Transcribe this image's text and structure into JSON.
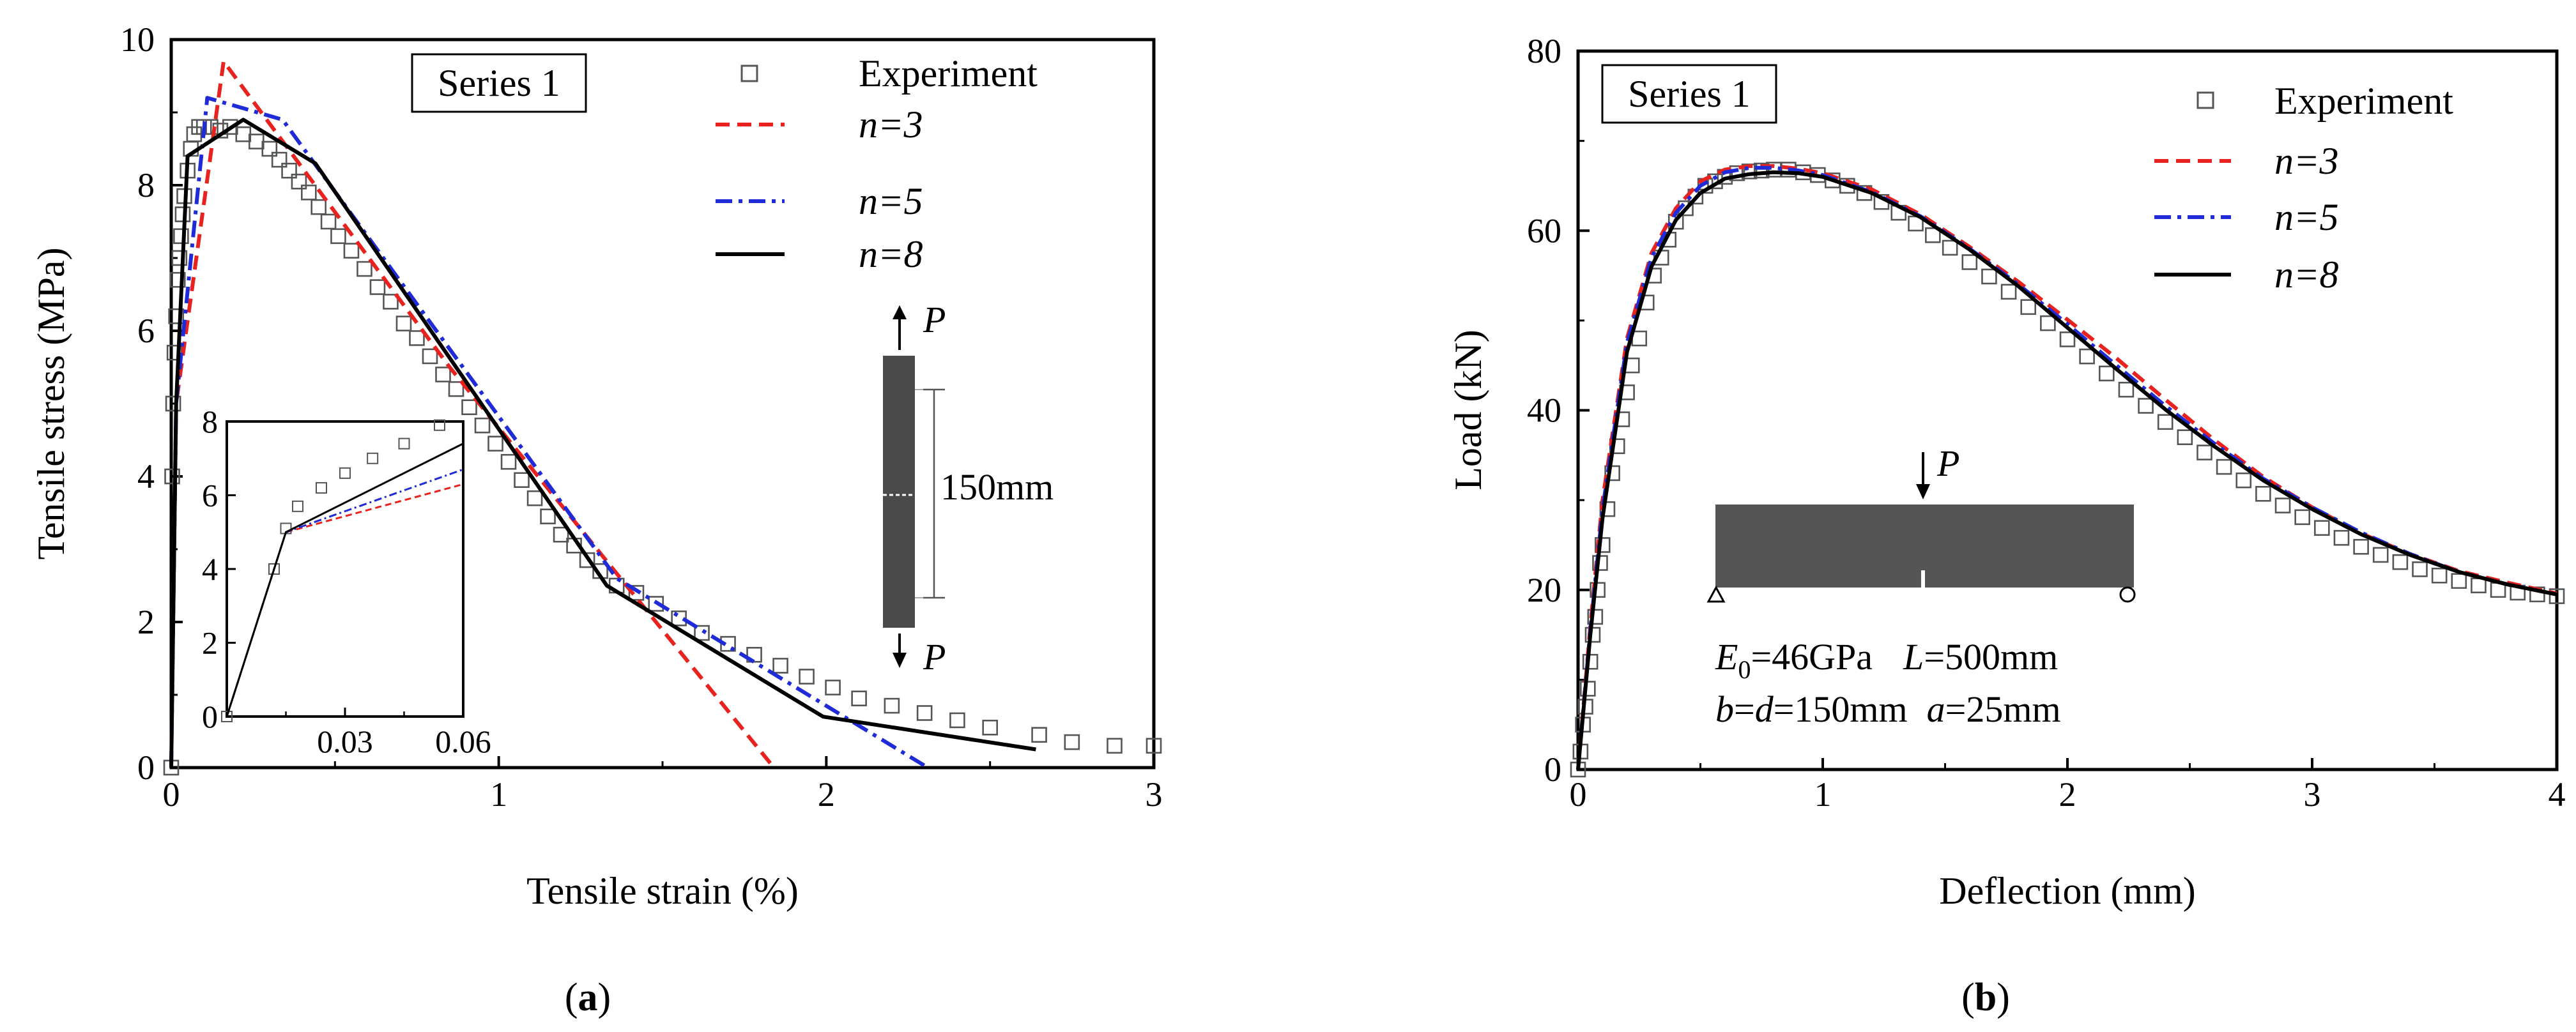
{
  "chart_data": [
    {
      "type": "line",
      "panel": "(a)",
      "panel_letter": "a",
      "xlabel": "Tensile strain (%)",
      "ylabel": "Tensile stress (MPa)",
      "xlim": [
        0,
        3
      ],
      "ylim": [
        0,
        10
      ],
      "x_ticks": [
        0,
        1,
        2,
        3
      ],
      "x_tick_labels": [
        "0",
        "1",
        "2",
        "3"
      ],
      "y_ticks": [
        0,
        2,
        4,
        6,
        8,
        10
      ],
      "y_tick_labels": [
        "0",
        "2",
        "4",
        "6",
        "8",
        "10"
      ],
      "box_label": "Series 1",
      "legend": [
        "Experiment",
        "n=3",
        "n=5",
        "n=8"
      ],
      "colors": {
        "experiment": "#555555",
        "n3": "#e8231f",
        "n5": "#1f2bd6",
        "n8": "#000000"
      },
      "series": [
        {
          "name": "Experiment",
          "style": "markers",
          "x": [
            0,
            0.003,
            0.006,
            0.01,
            0.015,
            0.02,
            0.025,
            0.03,
            0.035,
            0.04,
            0.05,
            0.06,
            0.07,
            0.085,
            0.1,
            0.12,
            0.15,
            0.18,
            0.22,
            0.26,
            0.3,
            0.33,
            0.36,
            0.39,
            0.42,
            0.45,
            0.48,
            0.51,
            0.55,
            0.59,
            0.63,
            0.67,
            0.71,
            0.75,
            0.79,
            0.83,
            0.87,
            0.91,
            0.95,
            0.99,
            1.03,
            1.07,
            1.11,
            1.15,
            1.19,
            1.23,
            1.27,
            1.31,
            1.36,
            1.42,
            1.48,
            1.55,
            1.62,
            1.7,
            1.78,
            1.86,
            1.94,
            2.02,
            2.1,
            2.2,
            2.3,
            2.4,
            2.5,
            2.65,
            2.75,
            2.88,
            3.0
          ],
          "y": [
            0,
            4.0,
            5.0,
            5.7,
            6.2,
            6.7,
            7.0,
            7.3,
            7.6,
            7.85,
            8.2,
            8.5,
            8.7,
            8.8,
            8.8,
            8.8,
            8.75,
            8.8,
            8.7,
            8.6,
            8.5,
            8.35,
            8.2,
            8.05,
            7.9,
            7.7,
            7.5,
            7.3,
            7.1,
            6.85,
            6.6,
            6.4,
            6.1,
            5.9,
            5.65,
            5.4,
            5.2,
            4.95,
            4.7,
            4.45,
            4.2,
            3.95,
            3.7,
            3.45,
            3.2,
            3.05,
            2.85,
            2.7,
            2.5,
            2.4,
            2.25,
            2.05,
            1.85,
            1.7,
            1.55,
            1.4,
            1.25,
            1.1,
            0.95,
            0.85,
            0.75,
            0.65,
            0.55,
            0.45,
            0.35,
            0.3,
            0.3
          ]
        },
        {
          "name": "n=3",
          "style": "dashed",
          "x": [
            0,
            0.015,
            0.16,
            0.85,
            1.84
          ],
          "y": [
            0,
            5.0,
            9.7,
            5.5,
            0
          ]
        },
        {
          "name": "n=5",
          "style": "dashdot",
          "x": [
            0,
            0.015,
            0.11,
            0.34,
            1.36,
            2.31
          ],
          "y": [
            0,
            5.0,
            9.2,
            8.9,
            2.6,
            0
          ]
        },
        {
          "name": "n=8",
          "style": "solid",
          "x": [
            0,
            0.015,
            0.05,
            0.22,
            0.44,
            1.33,
            1.99,
            2.64
          ],
          "y": [
            0,
            5.0,
            8.4,
            8.9,
            8.3,
            2.5,
            0.7,
            0.25
          ]
        }
      ],
      "inset": {
        "xlim": [
          0,
          0.06
        ],
        "ylim": [
          0,
          8
        ],
        "x_tick_labels": [
          "0.03",
          "0.06"
        ],
        "y_tick_labels": [
          "0",
          "2",
          "4",
          "6",
          "8"
        ],
        "series": [
          {
            "name": "Experiment",
            "x": [
              0.0,
              0.012,
              0.015,
              0.018,
              0.024,
              0.03,
              0.037,
              0.045,
              0.054
            ],
            "y": [
              0,
              4.0,
              5.1,
              5.7,
              6.2,
              6.6,
              7.0,
              7.4,
              7.9
            ]
          },
          {
            "name": "n=3",
            "x": [
              0,
              0.015,
              0.06
            ],
            "y": [
              0,
              5.0,
              6.3
            ]
          },
          {
            "name": "n=5",
            "x": [
              0,
              0.015,
              0.06
            ],
            "y": [
              0,
              5.0,
              6.7
            ]
          },
          {
            "name": "n=8",
            "x": [
              0,
              0.015,
              0.06
            ],
            "y": [
              0,
              5.0,
              7.4
            ]
          }
        ]
      },
      "specimen": {
        "load_label": "P",
        "length_label": "150mm"
      }
    },
    {
      "type": "line",
      "panel": "(b)",
      "panel_letter": "b",
      "xlabel": "Deflection (mm)",
      "ylabel": "Load (kN)",
      "xlim": [
        0,
        4
      ],
      "ylim": [
        0,
        80
      ],
      "x_ticks": [
        0,
        1,
        2,
        3,
        4
      ],
      "x_tick_labels": [
        "0",
        "1",
        "2",
        "3",
        "4"
      ],
      "y_ticks": [
        0,
        20,
        40,
        60,
        80
      ],
      "y_tick_labels": [
        "0",
        "20",
        "40",
        "60",
        "80"
      ],
      "box_label": "Series 1",
      "legend": [
        "Experiment",
        "n=3",
        "n=5",
        "n=8"
      ],
      "colors": {
        "experiment": "#555555",
        "n3": "#e8231f",
        "n5": "#1f2bd6",
        "n8": "#000000"
      },
      "series": [
        {
          "name": "Experiment",
          "style": "markers",
          "x": [
            0.0,
            0.01,
            0.02,
            0.03,
            0.04,
            0.05,
            0.06,
            0.07,
            0.08,
            0.09,
            0.1,
            0.12,
            0.14,
            0.16,
            0.18,
            0.2,
            0.22,
            0.25,
            0.28,
            0.31,
            0.34,
            0.37,
            0.4,
            0.44,
            0.48,
            0.52,
            0.56,
            0.6,
            0.65,
            0.7,
            0.75,
            0.8,
            0.86,
            0.92,
            0.98,
            1.04,
            1.1,
            1.17,
            1.24,
            1.31,
            1.38,
            1.45,
            1.52,
            1.6,
            1.68,
            1.76,
            1.84,
            1.92,
            2.0,
            2.08,
            2.16,
            2.24,
            2.32,
            2.4,
            2.48,
            2.56,
            2.64,
            2.72,
            2.8,
            2.88,
            2.96,
            3.04,
            3.12,
            3.2,
            3.28,
            3.36,
            3.44,
            3.52,
            3.6,
            3.68,
            3.76,
            3.84,
            3.92,
            4.0
          ],
          "y": [
            0,
            2,
            5,
            7,
            9,
            12,
            15,
            17,
            20,
            23,
            25,
            29,
            33,
            36,
            39,
            42,
            45,
            48,
            52,
            55,
            57,
            59,
            61,
            62.5,
            63.8,
            65,
            65.5,
            66,
            66.4,
            66.6,
            66.7,
            66.8,
            66.8,
            66.5,
            66.2,
            65.6,
            65.0,
            64.2,
            63.2,
            62.0,
            60.8,
            59.5,
            58.1,
            56.5,
            54.9,
            53.2,
            51.5,
            49.7,
            47.9,
            46.0,
            44.1,
            42.3,
            40.5,
            38.7,
            37.0,
            35.3,
            33.7,
            32.2,
            30.7,
            29.4,
            28.1,
            26.9,
            25.8,
            24.8,
            23.9,
            23.1,
            22.3,
            21.6,
            21.0,
            20.5,
            20.0,
            19.7,
            19.5,
            19.3
          ]
        },
        {
          "name": "n=3",
          "style": "dashed",
          "x": [
            0,
            0.05,
            0.1,
            0.2,
            0.3,
            0.4,
            0.5,
            0.6,
            0.7,
            0.8,
            0.9,
            1.0,
            1.2,
            1.4,
            1.6,
            1.8,
            2.0,
            2.2,
            2.4,
            2.6,
            2.8,
            3.0,
            3.2,
            3.4,
            3.6,
            3.8,
            4.0
          ],
          "y": [
            0,
            16,
            30,
            48,
            57.5,
            62.5,
            65.5,
            66.8,
            67.2,
            67.2,
            66.9,
            66.4,
            64.6,
            61.8,
            58.2,
            54.3,
            50.1,
            45.8,
            41.2,
            36.7,
            32.6,
            29.2,
            26.3,
            24.0,
            22.1,
            20.8,
            19.6
          ]
        },
        {
          "name": "n=5",
          "style": "dashdot",
          "x": [
            0,
            0.05,
            0.1,
            0.2,
            0.3,
            0.4,
            0.5,
            0.6,
            0.7,
            0.8,
            0.9,
            1.0,
            1.2,
            1.4,
            1.6,
            1.8,
            2.0,
            2.2,
            2.4,
            2.6,
            2.8,
            3.0,
            3.2,
            3.4,
            3.6,
            3.8,
            4.0
          ],
          "y": [
            0,
            15.5,
            29,
            47.5,
            57,
            62,
            65,
            66.5,
            67.0,
            67.0,
            66.7,
            66.2,
            64.3,
            61.6,
            58.0,
            54.0,
            49.6,
            45.0,
            40.5,
            36.3,
            32.4,
            29.2,
            26.4,
            24.0,
            22.0,
            20.6,
            19.5
          ]
        },
        {
          "name": "n=8",
          "style": "solid",
          "x": [
            0,
            0.05,
            0.1,
            0.2,
            0.3,
            0.4,
            0.5,
            0.6,
            0.7,
            0.8,
            0.9,
            1.0,
            1.2,
            1.4,
            1.6,
            1.8,
            2.0,
            2.2,
            2.4,
            2.6,
            2.8,
            3.0,
            3.2,
            3.4,
            3.6,
            3.8,
            4.0
          ],
          "y": [
            0,
            15,
            28,
            46.5,
            56,
            61.2,
            64.2,
            65.8,
            66.3,
            66.5,
            66.4,
            66.0,
            64.2,
            61.5,
            57.9,
            53.8,
            49.2,
            44.6,
            40.1,
            36.0,
            32.2,
            29.0,
            26.2,
            23.9,
            22.0,
            20.6,
            19.5
          ]
        }
      ],
      "beam": {
        "load_label": "P",
        "line1": {
          "e_sym": "E",
          "e_sub": "0",
          "e_val": "=46GPa",
          "l_sym": "L",
          "l_val": "=500mm"
        },
        "line2": {
          "b_sym": "b",
          "eq": "=",
          "d_sym": "d",
          "bd_val": "=150mm",
          "a_sym": "a",
          "a_val": "=25mm"
        }
      }
    }
  ]
}
